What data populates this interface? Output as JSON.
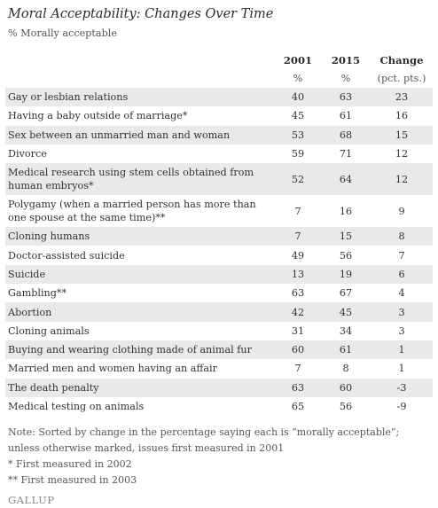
{
  "title": "Moral Acceptability: Changes Over Time",
  "subtitle": "% Morally acceptable",
  "table": {
    "headers": [
      "",
      "2001",
      "2015",
      "Change"
    ],
    "units": [
      "",
      "%",
      "%",
      "(pct. pts.)"
    ],
    "rows": [
      {
        "issue": "Gay or lesbian relations",
        "y2001": "40",
        "y2015": "63",
        "change": "23"
      },
      {
        "issue": "Having a baby outside of marriage*",
        "y2001": "45",
        "y2015": "61",
        "change": "16"
      },
      {
        "issue": "Sex between an unmarried man and woman",
        "y2001": "53",
        "y2015": "68",
        "change": "15"
      },
      {
        "issue": "Divorce",
        "y2001": "59",
        "y2015": "71",
        "change": "12"
      },
      {
        "issue": "Medical research using stem cells obtained from human embryos*",
        "y2001": "52",
        "y2015": "64",
        "change": "12"
      },
      {
        "issue": "Polygamy (when a married person has more than one spouse at the same time)**",
        "y2001": "7",
        "y2015": "16",
        "change": "9"
      },
      {
        "issue": "Cloning humans",
        "y2001": "7",
        "y2015": "15",
        "change": "8"
      },
      {
        "issue": "Doctor-assisted suicide",
        "y2001": "49",
        "y2015": "56",
        "change": "7"
      },
      {
        "issue": "Suicide",
        "y2001": "13",
        "y2015": "19",
        "change": "6"
      },
      {
        "issue": "Gambling**",
        "y2001": "63",
        "y2015": "67",
        "change": "4"
      },
      {
        "issue": "Abortion",
        "y2001": "42",
        "y2015": "45",
        "change": "3"
      },
      {
        "issue": "Cloning animals",
        "y2001": "31",
        "y2015": "34",
        "change": "3"
      },
      {
        "issue": "Buying and wearing clothing made of animal fur",
        "y2001": "60",
        "y2015": "61",
        "change": "1"
      },
      {
        "issue": "Married men and women having an affair",
        "y2001": "7",
        "y2015": "8",
        "change": "1"
      },
      {
        "issue": "The death penalty",
        "y2001": "63",
        "y2015": "60",
        "change": "-3"
      },
      {
        "issue": "Medical testing on animals",
        "y2001": "65",
        "y2015": "56",
        "change": "-9"
      }
    ]
  },
  "notes": [
    "Note: Sorted by change in the percentage saying each is “morally acceptable”;",
    "unless otherwise marked, issues first measured in 2001",
    "* First measured in 2002",
    "** First measured in 2003"
  ],
  "brand": "GALLUP"
}
